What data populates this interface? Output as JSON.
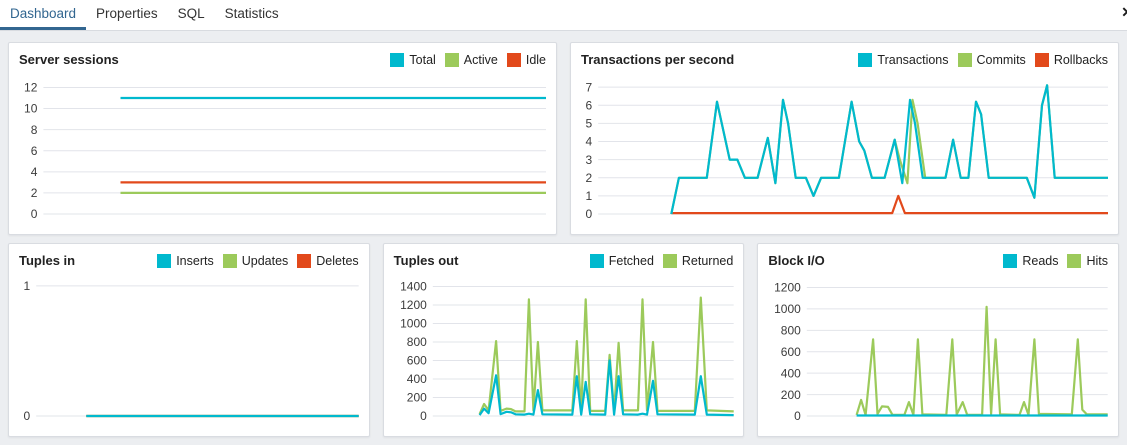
{
  "tabs": [
    {
      "label": "Dashboard",
      "active": true
    },
    {
      "label": "Properties",
      "active": false
    },
    {
      "label": "SQL",
      "active": false
    },
    {
      "label": "Statistics",
      "active": false
    }
  ],
  "icons": {
    "close": "✕"
  },
  "colors": {
    "accent_blue": "#326690",
    "cyan": "#00b9ce",
    "green": "#9cca5b",
    "red": "#e2491b",
    "gridline": "#e2e4ea",
    "tick_text": "#3c3c3c"
  },
  "chart_data": [
    {
      "id": "server-sessions",
      "type": "line",
      "title": "Server sessions",
      "row": 1,
      "xlabel": "",
      "ylabel": "",
      "grid": true,
      "legend_position": "top-right",
      "yticks": [
        0,
        2,
        4,
        6,
        8,
        10,
        12
      ],
      "ylim": [
        0,
        12.8
      ],
      "series": [
        {
          "name": "Total",
          "color": "#00b9ce",
          "points": [
            [
              15,
              11
            ],
            [
              100,
              11
            ]
          ]
        },
        {
          "name": "Active",
          "color": "#9cca5b",
          "points": [
            [
              15,
              2
            ],
            [
              100,
              2
            ]
          ]
        },
        {
          "name": "Idle",
          "color": "#e2491b",
          "points": [
            [
              15,
              3
            ],
            [
              100,
              3
            ]
          ]
        }
      ]
    },
    {
      "id": "transactions-per-second",
      "type": "line",
      "title": "Transactions per second",
      "row": 1,
      "xlabel": "",
      "ylabel": "",
      "grid": true,
      "legend_position": "top-right",
      "yticks": [
        0,
        1,
        2,
        3,
        4,
        5,
        6,
        7
      ],
      "ylim": [
        0,
        7.45
      ],
      "series": [
        {
          "name": "Transactions",
          "color": "#00b9ce",
          "points": [
            [
              14,
              0
            ],
            [
              15.5,
              2
            ],
            [
              21,
              2
            ],
            [
              23,
              6.2
            ],
            [
              25.5,
              3
            ],
            [
              27,
              3
            ],
            [
              28.5,
              2
            ],
            [
              31,
              2
            ],
            [
              33,
              4.2
            ],
            [
              34.5,
              1.7
            ],
            [
              36,
              6.3
            ],
            [
              37,
              5
            ],
            [
              38.5,
              2
            ],
            [
              40.5,
              2
            ],
            [
              42,
              1
            ],
            [
              43.5,
              2
            ],
            [
              47,
              2
            ],
            [
              49.5,
              6.2
            ],
            [
              51,
              4
            ],
            [
              52,
              3.5
            ],
            [
              53.5,
              2
            ],
            [
              56,
              2
            ],
            [
              58,
              4.1
            ],
            [
              59.5,
              1.7
            ],
            [
              61,
              6.3
            ],
            [
              62,
              5
            ],
            [
              63.5,
              2
            ],
            [
              68,
              2
            ],
            [
              69.5,
              4.1
            ],
            [
              71,
              2
            ],
            [
              72.5,
              2
            ],
            [
              74,
              6.2
            ],
            [
              75,
              5.5
            ],
            [
              76.5,
              2
            ],
            [
              84,
              2
            ],
            [
              85.5,
              0.9
            ],
            [
              87,
              6
            ],
            [
              88,
              7.1
            ],
            [
              89.5,
              2
            ],
            [
              100,
              2
            ]
          ]
        },
        {
          "name": "Commits",
          "color": "#9cca5b",
          "points": [
            [
              14,
              0
            ],
            [
              15.5,
              2
            ],
            [
              21,
              2
            ],
            [
              23,
              6.2
            ],
            [
              25.5,
              3
            ],
            [
              27,
              3
            ],
            [
              28.5,
              2
            ],
            [
              31,
              2
            ],
            [
              33,
              4.2
            ],
            [
              34.5,
              1.7
            ],
            [
              36,
              6.3
            ],
            [
              37,
              5
            ],
            [
              38.5,
              2
            ],
            [
              40.5,
              2
            ],
            [
              42,
              1
            ],
            [
              43.5,
              2
            ],
            [
              47,
              2
            ],
            [
              49.5,
              6.2
            ],
            [
              51,
              4
            ],
            [
              52,
              3.5
            ],
            [
              53.5,
              2
            ],
            [
              56,
              2
            ],
            [
              58,
              4.1
            ],
            [
              59,
              3
            ],
            [
              60.5,
              1.7
            ],
            [
              61.5,
              6.3
            ],
            [
              62.5,
              5
            ],
            [
              64,
              2
            ],
            [
              68,
              2
            ],
            [
              69.5,
              4.1
            ],
            [
              71,
              2
            ],
            [
              72.5,
              2
            ],
            [
              74,
              6.2
            ],
            [
              75,
              5.5
            ],
            [
              76.5,
              2
            ],
            [
              84,
              2
            ],
            [
              85.5,
              0.9
            ],
            [
              87,
              6
            ],
            [
              88,
              7.1
            ],
            [
              89.5,
              2
            ],
            [
              100,
              2
            ]
          ]
        },
        {
          "name": "Rollbacks",
          "color": "#e2491b",
          "points": [
            [
              14,
              0.05
            ],
            [
              57.5,
              0.05
            ],
            [
              58.7,
              1
            ],
            [
              60,
              0.05
            ],
            [
              100,
              0.05
            ]
          ]
        }
      ]
    },
    {
      "id": "tuples-in",
      "type": "line",
      "title": "Tuples in",
      "row": 2,
      "xlabel": "",
      "ylabel": "",
      "grid": true,
      "legend_position": "top-right",
      "yticks": [
        0,
        1
      ],
      "ylim": [
        0,
        1.045
      ],
      "series": [
        {
          "name": "Inserts",
          "color": "#00b9ce",
          "points": [
            [
              15,
              0
            ],
            [
              100,
              0
            ]
          ]
        },
        {
          "name": "Updates",
          "color": "#9cca5b",
          "points": [
            [
              15,
              0
            ],
            [
              100,
              0
            ]
          ]
        },
        {
          "name": "Deletes",
          "color": "#e2491b",
          "points": [
            [
              15,
              0
            ],
            [
              100,
              0
            ]
          ]
        }
      ]
    },
    {
      "id": "tuples-out",
      "type": "line",
      "title": "Tuples out",
      "row": 2,
      "xlabel": "",
      "ylabel": "",
      "grid": true,
      "legend_position": "top-right",
      "yticks": [
        0,
        200,
        400,
        600,
        800,
        1000,
        1200,
        1400
      ],
      "ylim": [
        0,
        1470
      ],
      "series": [
        {
          "name": "Fetched",
          "color": "#00b9ce",
          "points": [
            [
              15,
              10
            ],
            [
              16.5,
              80
            ],
            [
              18,
              30
            ],
            [
              20.5,
              440
            ],
            [
              22,
              20
            ],
            [
              24,
              45
            ],
            [
              25.5,
              40
            ],
            [
              27,
              18
            ],
            [
              30,
              15
            ],
            [
              31.5,
              25
            ],
            [
              33,
              15
            ],
            [
              34.5,
              280
            ],
            [
              36,
              18
            ],
            [
              46,
              15
            ],
            [
              47.5,
              430
            ],
            [
              49,
              15
            ],
            [
              50.5,
              370
            ],
            [
              52,
              18
            ],
            [
              57,
              15
            ],
            [
              58.5,
              600
            ],
            [
              60,
              15
            ],
            [
              61.5,
              430
            ],
            [
              63,
              18
            ],
            [
              68,
              15
            ],
            [
              69.5,
              25
            ],
            [
              71,
              15
            ],
            [
              73,
              380
            ],
            [
              74.5,
              18
            ],
            [
              87,
              15
            ],
            [
              89,
              430
            ],
            [
              91,
              15
            ],
            [
              100,
              10
            ]
          ]
        },
        {
          "name": "Returned",
          "color": "#9cca5b",
          "points": [
            [
              15,
              20
            ],
            [
              16.5,
              130
            ],
            [
              18,
              60
            ],
            [
              20.5,
              810
            ],
            [
              22,
              55
            ],
            [
              24,
              80
            ],
            [
              25.5,
              75
            ],
            [
              27,
              50
            ],
            [
              30,
              50
            ],
            [
              31.5,
              1260
            ],
            [
              33,
              60
            ],
            [
              34.5,
              800
            ],
            [
              36,
              60
            ],
            [
              46,
              60
            ],
            [
              47.5,
              810
            ],
            [
              49,
              60
            ],
            [
              50.5,
              1260
            ],
            [
              52,
              55
            ],
            [
              57,
              55
            ],
            [
              58.5,
              660
            ],
            [
              60,
              55
            ],
            [
              61.5,
              790
            ],
            [
              63,
              60
            ],
            [
              68,
              60
            ],
            [
              69.5,
              1260
            ],
            [
              71,
              60
            ],
            [
              73,
              800
            ],
            [
              74.5,
              55
            ],
            [
              87,
              55
            ],
            [
              89,
              1280
            ],
            [
              91,
              60
            ],
            [
              100,
              50
            ]
          ]
        }
      ]
    },
    {
      "id": "block-io",
      "type": "line",
      "title": "Block I/O",
      "row": 2,
      "xlabel": "",
      "ylabel": "",
      "grid": true,
      "legend_position": "top-right",
      "yticks": [
        0,
        200,
        400,
        600,
        800,
        1000,
        1200
      ],
      "ylim": [
        0,
        1270
      ],
      "series": [
        {
          "name": "Reads",
          "color": "#00b9ce",
          "points": [
            [
              16,
              5
            ],
            [
              100,
              5
            ]
          ]
        },
        {
          "name": "Hits",
          "color": "#9cca5b",
          "points": [
            [
              16,
              10
            ],
            [
              17.5,
              150
            ],
            [
              19,
              10
            ],
            [
              21.5,
              715
            ],
            [
              23,
              20
            ],
            [
              24.5,
              90
            ],
            [
              26.5,
              85
            ],
            [
              28,
              10
            ],
            [
              32,
              10
            ],
            [
              33.5,
              130
            ],
            [
              35,
              10
            ],
            [
              36.5,
              715
            ],
            [
              38,
              15
            ],
            [
              46,
              10
            ],
            [
              48,
              715
            ],
            [
              49.5,
              15
            ],
            [
              51.5,
              130
            ],
            [
              53,
              10
            ],
            [
              58,
              10
            ],
            [
              59.5,
              1020
            ],
            [
              61,
              20
            ],
            [
              62.5,
              715
            ],
            [
              64,
              15
            ],
            [
              70.5,
              10
            ],
            [
              72,
              130
            ],
            [
              73.5,
              10
            ],
            [
              75.5,
              715
            ],
            [
              77,
              20
            ],
            [
              88,
              15
            ],
            [
              90,
              715
            ],
            [
              91.5,
              60
            ],
            [
              93,
              15
            ],
            [
              100,
              15
            ]
          ]
        }
      ]
    }
  ]
}
